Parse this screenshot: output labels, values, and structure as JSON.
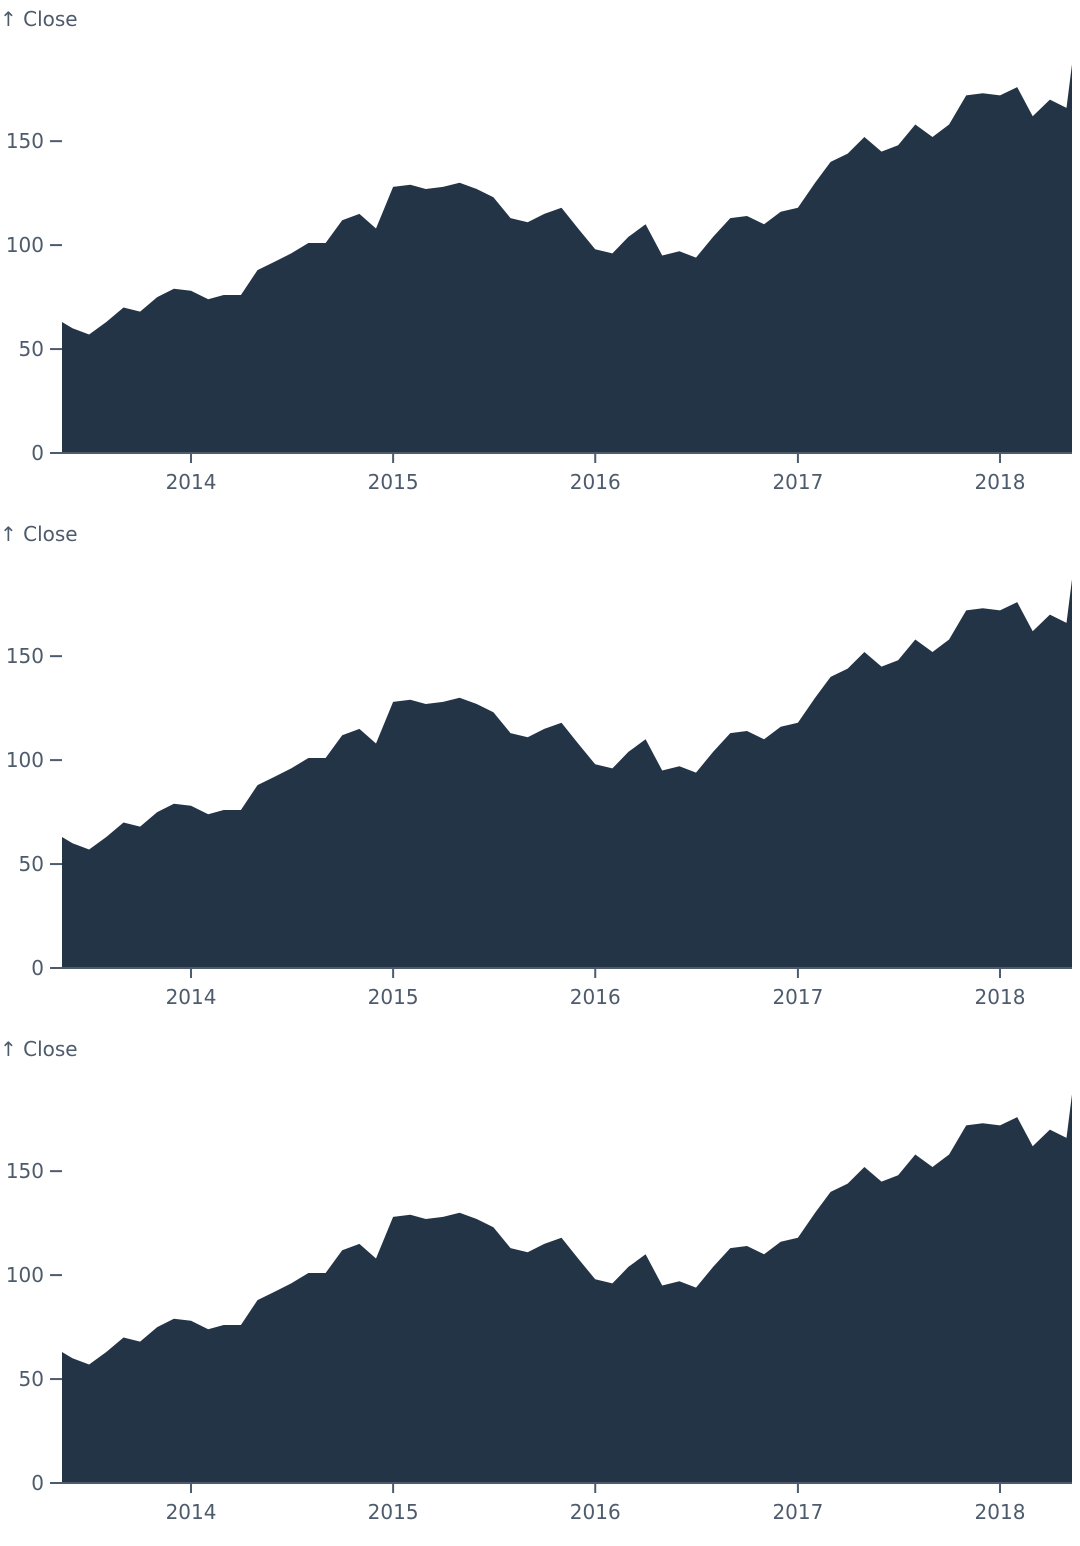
{
  "colors": {
    "area": "#233446",
    "axis": "#4d5b6c",
    "background": "#ffffff"
  },
  "chart_data": [
    {
      "type": "area",
      "ylabel": "↑ Close",
      "xlabel": "",
      "xlim": [
        "2013-05-13",
        "2018-05-11"
      ],
      "ylim": [
        0,
        190
      ],
      "yticks": [
        0,
        50,
        100,
        150
      ],
      "xticks": [
        "2014",
        "2015",
        "2016",
        "2017",
        "2018"
      ],
      "grid": false,
      "x": [
        "2013-05-13",
        "2013-06-01",
        "2013-07-01",
        "2013-08-01",
        "2013-09-01",
        "2013-10-01",
        "2013-11-01",
        "2013-12-01",
        "2014-01-01",
        "2014-02-01",
        "2014-03-01",
        "2014-04-01",
        "2014-05-01",
        "2014-06-01",
        "2014-07-01",
        "2014-08-01",
        "2014-09-01",
        "2014-10-01",
        "2014-11-01",
        "2014-12-01",
        "2015-01-01",
        "2015-02-01",
        "2015-03-01",
        "2015-04-01",
        "2015-05-01",
        "2015-06-01",
        "2015-07-01",
        "2015-08-01",
        "2015-09-01",
        "2015-10-01",
        "2015-11-01",
        "2015-12-01",
        "2016-01-01",
        "2016-02-01",
        "2016-03-01",
        "2016-04-01",
        "2016-05-01",
        "2016-06-01",
        "2016-07-01",
        "2016-08-01",
        "2016-09-01",
        "2016-10-01",
        "2016-11-01",
        "2016-12-01",
        "2017-01-01",
        "2017-02-01",
        "2017-03-01",
        "2017-04-01",
        "2017-05-01",
        "2017-06-01",
        "2017-07-01",
        "2017-08-01",
        "2017-09-01",
        "2017-10-01",
        "2017-11-01",
        "2017-12-01",
        "2018-01-01",
        "2018-02-01",
        "2018-03-01",
        "2018-04-01",
        "2018-05-01",
        "2018-05-11"
      ],
      "values": [
        63,
        60,
        57,
        63,
        70,
        68,
        75,
        79,
        78,
        74,
        76,
        76,
        88,
        92,
        96,
        101,
        101,
        112,
        115,
        108,
        128,
        129,
        127,
        128,
        130,
        127,
        123,
        113,
        111,
        115,
        118,
        108,
        98,
        96,
        104,
        110,
        95,
        97,
        94,
        104,
        113,
        114,
        110,
        116,
        118,
        130,
        140,
        144,
        152,
        145,
        148,
        158,
        152,
        158,
        172,
        173,
        172,
        176,
        162,
        170,
        166,
        187
      ]
    },
    {
      "type": "area",
      "ylabel": "↑ Close",
      "xlabel": "",
      "xlim": [
        "2013-05-13",
        "2018-05-11"
      ],
      "ylim": [
        0,
        190
      ],
      "yticks": [
        0,
        50,
        100,
        150
      ],
      "xticks": [
        "2014",
        "2015",
        "2016",
        "2017",
        "2018"
      ],
      "grid": false,
      "x": [
        "2013-05-13",
        "2013-06-01",
        "2013-07-01",
        "2013-08-01",
        "2013-09-01",
        "2013-10-01",
        "2013-11-01",
        "2013-12-01",
        "2014-01-01",
        "2014-02-01",
        "2014-03-01",
        "2014-04-01",
        "2014-05-01",
        "2014-06-01",
        "2014-07-01",
        "2014-08-01",
        "2014-09-01",
        "2014-10-01",
        "2014-11-01",
        "2014-12-01",
        "2015-01-01",
        "2015-02-01",
        "2015-03-01",
        "2015-04-01",
        "2015-05-01",
        "2015-06-01",
        "2015-07-01",
        "2015-08-01",
        "2015-09-01",
        "2015-10-01",
        "2015-11-01",
        "2015-12-01",
        "2016-01-01",
        "2016-02-01",
        "2016-03-01",
        "2016-04-01",
        "2016-05-01",
        "2016-06-01",
        "2016-07-01",
        "2016-08-01",
        "2016-09-01",
        "2016-10-01",
        "2016-11-01",
        "2016-12-01",
        "2017-01-01",
        "2017-02-01",
        "2017-03-01",
        "2017-04-01",
        "2017-05-01",
        "2017-06-01",
        "2017-07-01",
        "2017-08-01",
        "2017-09-01",
        "2017-10-01",
        "2017-11-01",
        "2017-12-01",
        "2018-01-01",
        "2018-02-01",
        "2018-03-01",
        "2018-04-01",
        "2018-05-01",
        "2018-05-11"
      ],
      "values": [
        63,
        60,
        57,
        63,
        70,
        68,
        75,
        79,
        78,
        74,
        76,
        76,
        88,
        92,
        96,
        101,
        101,
        112,
        115,
        108,
        128,
        129,
        127,
        128,
        130,
        127,
        123,
        113,
        111,
        115,
        118,
        108,
        98,
        96,
        104,
        110,
        95,
        97,
        94,
        104,
        113,
        114,
        110,
        116,
        118,
        130,
        140,
        144,
        152,
        145,
        148,
        158,
        152,
        158,
        172,
        173,
        172,
        176,
        162,
        170,
        166,
        187
      ]
    },
    {
      "type": "area",
      "ylabel": "↑ Close",
      "xlabel": "",
      "xlim": [
        "2013-05-13",
        "2018-05-11"
      ],
      "ylim": [
        0,
        190
      ],
      "yticks": [
        0,
        50,
        100,
        150
      ],
      "xticks": [
        "2014",
        "2015",
        "2016",
        "2017",
        "2018"
      ],
      "grid": false,
      "x": [
        "2013-05-13",
        "2013-06-01",
        "2013-07-01",
        "2013-08-01",
        "2013-09-01",
        "2013-10-01",
        "2013-11-01",
        "2013-12-01",
        "2014-01-01",
        "2014-02-01",
        "2014-03-01",
        "2014-04-01",
        "2014-05-01",
        "2014-06-01",
        "2014-07-01",
        "2014-08-01",
        "2014-09-01",
        "2014-10-01",
        "2014-11-01",
        "2014-12-01",
        "2015-01-01",
        "2015-02-01",
        "2015-03-01",
        "2015-04-01",
        "2015-05-01",
        "2015-06-01",
        "2015-07-01",
        "2015-08-01",
        "2015-09-01",
        "2015-10-01",
        "2015-11-01",
        "2015-12-01",
        "2016-01-01",
        "2016-02-01",
        "2016-03-01",
        "2016-04-01",
        "2016-05-01",
        "2016-06-01",
        "2016-07-01",
        "2016-08-01",
        "2016-09-01",
        "2016-10-01",
        "2016-11-01",
        "2016-12-01",
        "2017-01-01",
        "2017-02-01",
        "2017-03-01",
        "2017-04-01",
        "2017-05-01",
        "2017-06-01",
        "2017-07-01",
        "2017-08-01",
        "2017-09-01",
        "2017-10-01",
        "2017-11-01",
        "2017-12-01",
        "2018-01-01",
        "2018-02-01",
        "2018-03-01",
        "2018-04-01",
        "2018-05-01",
        "2018-05-11"
      ],
      "values": [
        63,
        60,
        57,
        63,
        70,
        68,
        75,
        79,
        78,
        74,
        76,
        76,
        88,
        92,
        96,
        101,
        101,
        112,
        115,
        108,
        128,
        129,
        127,
        128,
        130,
        127,
        123,
        113,
        111,
        115,
        118,
        108,
        98,
        96,
        104,
        110,
        95,
        97,
        94,
        104,
        113,
        114,
        110,
        116,
        118,
        130,
        140,
        144,
        152,
        145,
        148,
        158,
        152,
        158,
        172,
        173,
        172,
        176,
        162,
        170,
        166,
        187
      ]
    }
  ]
}
